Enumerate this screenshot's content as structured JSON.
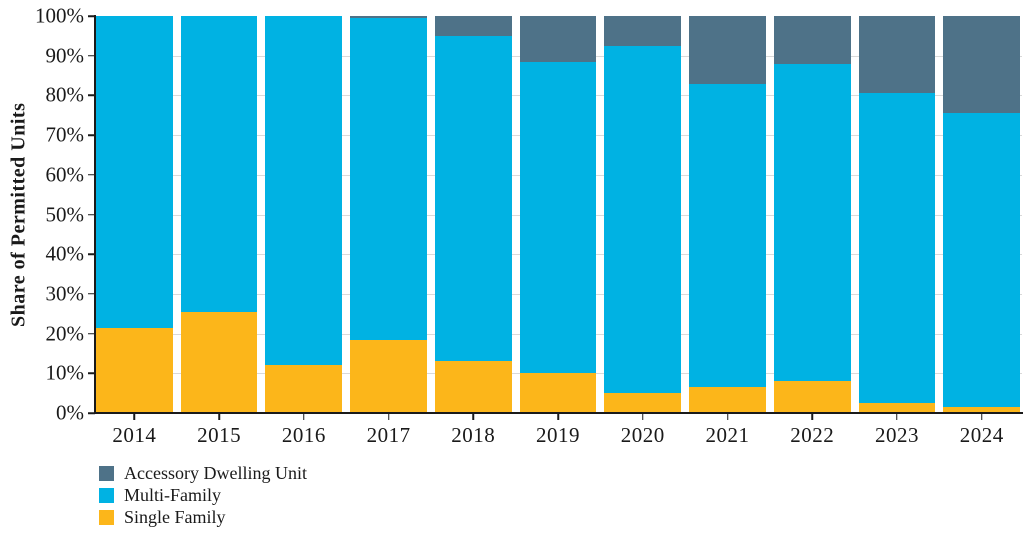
{
  "chart_data": {
    "type": "bar",
    "stacked": true,
    "percent": true,
    "title": "",
    "xlabel": "",
    "ylabel": "Share of Permitted Units",
    "ylim": [
      0,
      100
    ],
    "grid": true,
    "categories": [
      "2014",
      "2015",
      "2016",
      "2017",
      "2018",
      "2019",
      "2020",
      "2021",
      "2022",
      "2023",
      "2024"
    ],
    "series": [
      {
        "name": "Single Family",
        "color": "#fcb61a",
        "values": [
          21.5,
          25.5,
          12,
          18.5,
          13,
          10,
          5,
          6.5,
          8,
          2.5,
          1.5
        ]
      },
      {
        "name": "Multi-Family",
        "color": "#00b2e3",
        "values": [
          78.5,
          74.5,
          88,
          81,
          82,
          78.5,
          87.5,
          76.5,
          80,
          78,
          74
        ]
      },
      {
        "name": "Accessory Dwelling Unit",
        "color": "#4e7288",
        "values": [
          0,
          0,
          0,
          0.5,
          5,
          11.5,
          7.5,
          17,
          12,
          19.5,
          24.5
        ]
      }
    ],
    "y_ticks": [
      {
        "label": "0%",
        "value": 0
      },
      {
        "label": "10%",
        "value": 10
      },
      {
        "label": "20%",
        "value": 20
      },
      {
        "label": "30%",
        "value": 30
      },
      {
        "label": "40%",
        "value": 40
      },
      {
        "label": "50%",
        "value": 50
      },
      {
        "label": "60%",
        "value": 60
      },
      {
        "label": "70%",
        "value": 70
      },
      {
        "label": "80%",
        "value": 80
      },
      {
        "label": "90%",
        "value": 90
      },
      {
        "label": "100%",
        "value": 100
      }
    ],
    "legend_position": "bottom-left"
  },
  "legend": {
    "entries": [
      {
        "label": "Accessory Dwelling Unit",
        "color": "#4e7288"
      },
      {
        "label": "Multi-Family",
        "color": "#00b2e3"
      },
      {
        "label": "Single Family",
        "color": "#fcb61a"
      }
    ]
  },
  "colors": {
    "accessory_dwelling_unit": "#4e7288",
    "multi_family": "#00b2e3",
    "single_family": "#fcb61a",
    "gridline": "#d9d9d9",
    "axis": "#1a1a1a",
    "background": "#ffffff"
  }
}
